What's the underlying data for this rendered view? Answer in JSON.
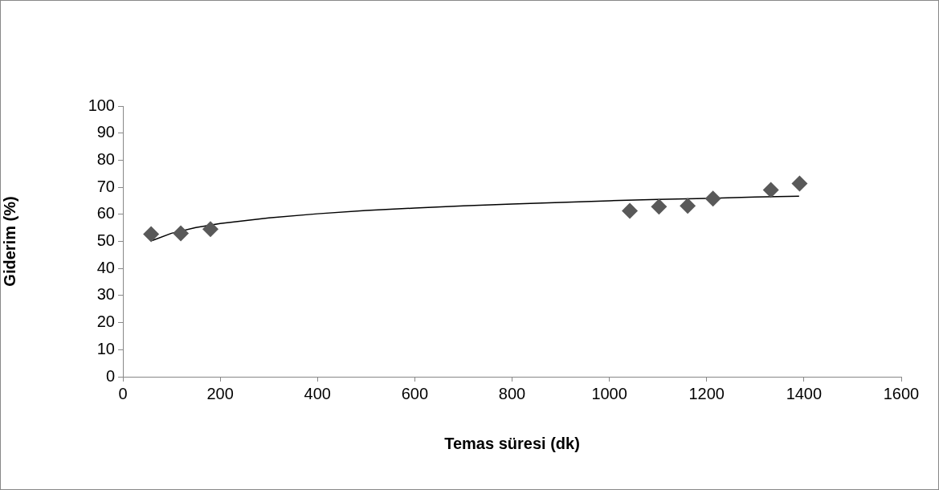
{
  "chart_data": {
    "type": "scatter",
    "xlabel": "Temas süresi (dk)",
    "ylabel": "Giderim (%)",
    "xlim": [
      0,
      1600
    ],
    "xticks": [
      0,
      200,
      400,
      600,
      800,
      1000,
      1200,
      1400,
      1600
    ],
    "ylim": [
      0,
      100
    ],
    "yticks": [
      0,
      10,
      20,
      30,
      40,
      50,
      60,
      70,
      80,
      90,
      100
    ],
    "marker": "diamond",
    "series": [
      {
        "color": "#595959",
        "x": [
          58,
          119,
          180,
          1042,
          1102,
          1161,
          1213,
          1332,
          1391
        ],
        "values": [
          52.7,
          53.0,
          54.5,
          61.3,
          62.8,
          63.1,
          65.8,
          69.0,
          71.4
        ]
      },
      {
        "type": "line",
        "marker": "none",
        "color": "#000000",
        "x": [
          60,
          100,
          150,
          200,
          300,
          400,
          500,
          600,
          700,
          800,
          900,
          1000,
          1100,
          1200,
          1300,
          1390
        ],
        "values": [
          50.3,
          53.0,
          55.1,
          56.6,
          58.7,
          60.2,
          61.4,
          62.3,
          63.1,
          63.8,
          64.4,
          65.0,
          65.5,
          65.9,
          66.4,
          66.7
        ]
      }
    ]
  }
}
